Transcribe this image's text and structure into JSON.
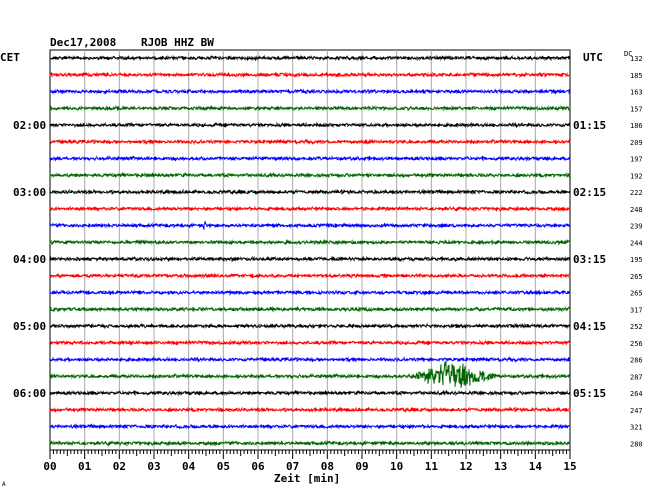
{
  "header": {
    "date": "Dec17,2008",
    "station": "RJOB HHZ BW"
  },
  "left_label": "CET",
  "right_label": "UTC",
  "dc_label": "DC",
  "footer_mark": "A",
  "chart_data": {
    "type": "line",
    "title": "Dec17,2008   RJOB HHZ BW",
    "xlabel": "Zeit [min]",
    "xlim": [
      0,
      15
    ],
    "x_ticks": [
      "00",
      "01",
      "02",
      "03",
      "04",
      "05",
      "06",
      "07",
      "08",
      "09",
      "10",
      "11",
      "12",
      "13",
      "14",
      "15"
    ],
    "grid": true,
    "trace_minutes": 15,
    "trace_colors": [
      "#000000",
      "#ff0000",
      "#0000ff",
      "#006400"
    ],
    "cet_hour_labels": [
      {
        "trace": 4,
        "label": "02:00"
      },
      {
        "trace": 8,
        "label": "03:00"
      },
      {
        "trace": 12,
        "label": "04:00"
      },
      {
        "trace": 16,
        "label": "05:00"
      },
      {
        "trace": 20,
        "label": "06:00"
      }
    ],
    "utc_hour_labels": [
      {
        "trace": 4,
        "label": "01:15"
      },
      {
        "trace": 8,
        "label": "02:15"
      },
      {
        "trace": 12,
        "label": "03:15"
      },
      {
        "trace": 16,
        "label": "04:15"
      },
      {
        "trace": 20,
        "label": "05:15"
      }
    ],
    "dc_values": [
      "132",
      "185",
      "163",
      "157",
      "186",
      "209",
      "197",
      "192",
      "222",
      "248",
      "239",
      "244",
      "195",
      "265",
      "265",
      "317",
      "252",
      "256",
      "286",
      "287",
      "264",
      "247",
      "321",
      "280"
    ],
    "events": [
      {
        "trace": 10,
        "start_min": 4.4,
        "end_min": 4.5,
        "peak_min": 4.45,
        "amplitude": 0.5
      },
      {
        "trace": 19,
        "start_min": 10.3,
        "end_min": 12.9,
        "peak_min": 11.6,
        "amplitude": 1.0
      }
    ]
  }
}
